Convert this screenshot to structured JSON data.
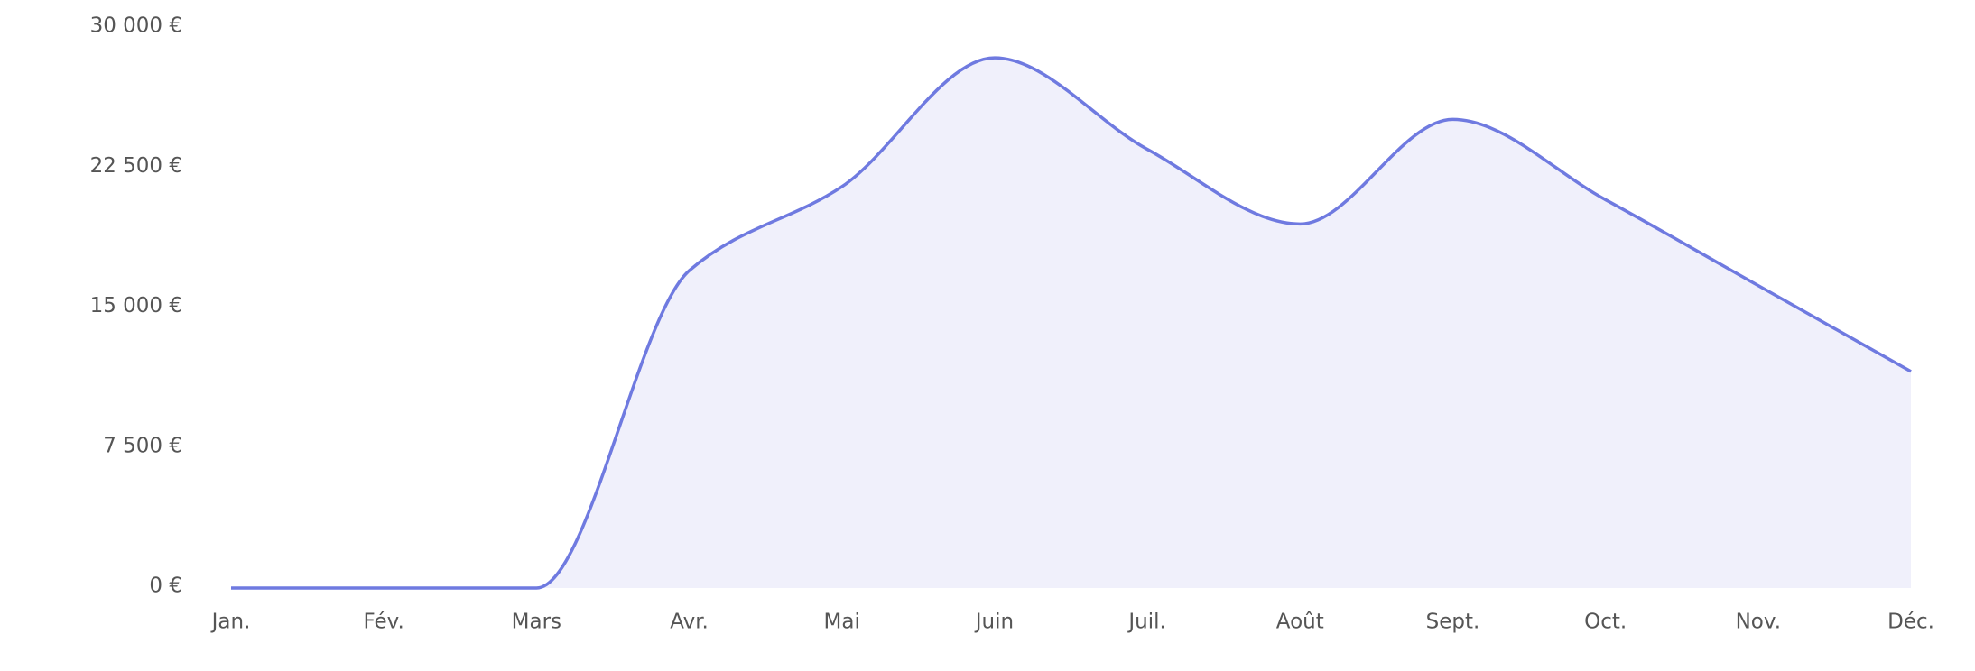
{
  "chart_data": {
    "type": "area",
    "categories": [
      "Jan.",
      "Fév.",
      "Mars",
      "Avr.",
      "Mai",
      "Juin",
      "Juil.",
      "Août",
      "Sept.",
      "Oct.",
      "Nov.",
      "Déc."
    ],
    "values": [
      0,
      0,
      0,
      17000,
      21500,
      28400,
      23500,
      19500,
      25100,
      20800,
      16200,
      11600
    ],
    "color": "#6f7ae0",
    "fill": "#f0f0fb",
    "ylim": [
      0,
      30000
    ],
    "yticks": [
      {
        "value": 0,
        "label": "0 €"
      },
      {
        "value": 7500,
        "label": "7 500 €"
      },
      {
        "value": 15000,
        "label": "15 000 €"
      },
      {
        "value": 22500,
        "label": "22 500 €"
      },
      {
        "value": 30000,
        "label": "30 000 €"
      }
    ],
    "grid": false
  }
}
